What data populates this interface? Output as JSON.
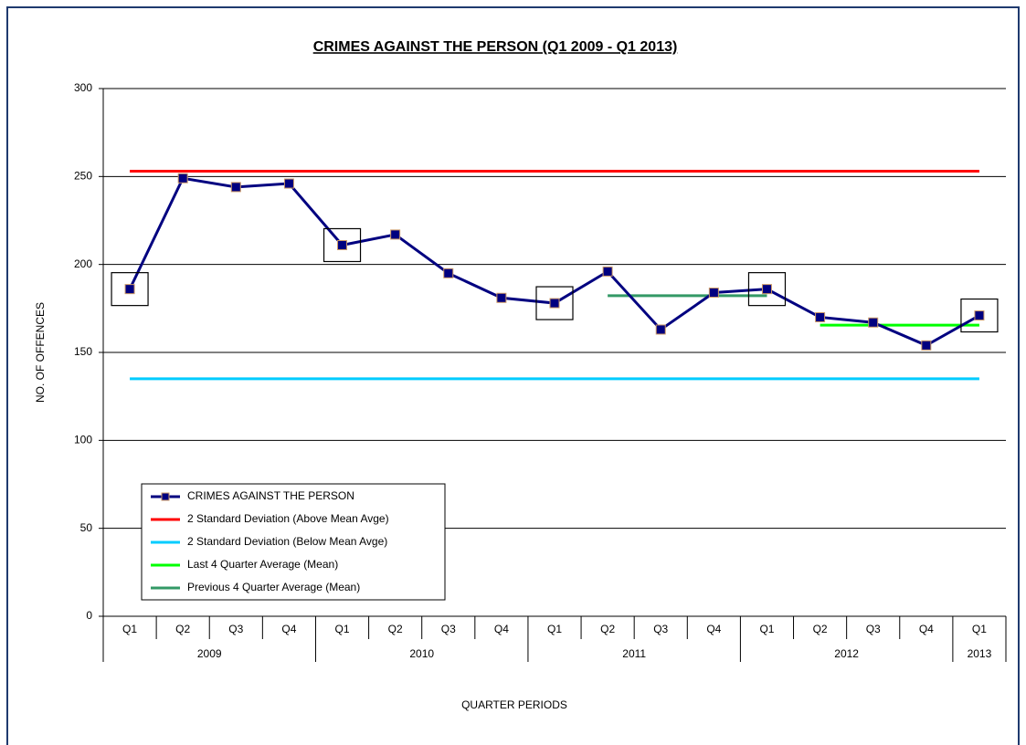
{
  "chart_data": {
    "type": "line",
    "title": "CRIMES AGAINST THE PERSON (Q1 2009 - Q1 2013)",
    "y_label": "NO. OF OFFENCES",
    "x_label": "QUARTER PERIODS",
    "categories": [
      "Q1",
      "Q2",
      "Q3",
      "Q4",
      "Q1",
      "Q2",
      "Q3",
      "Q4",
      "Q1",
      "Q2",
      "Q3",
      "Q4",
      "Q1",
      "Q2",
      "Q3",
      "Q4",
      "Q1"
    ],
    "category_groups": [
      "2009",
      "2009",
      "2009",
      "2009",
      "2010",
      "2010",
      "2010",
      "2010",
      "2011",
      "2011",
      "2011",
      "2011",
      "2012",
      "2012",
      "2012",
      "2012",
      "2013"
    ],
    "series": [
      {
        "name": "CRIMES AGAINST THE PERSON",
        "color": "#000080",
        "marker": true,
        "values": [
          186,
          249,
          244,
          246,
          211,
          217,
          195,
          181,
          178,
          196,
          163,
          184,
          186,
          170,
          167,
          154,
          171
        ]
      },
      {
        "name": "2 Standard Deviation (Above Mean Avge)",
        "color": "#ff0000",
        "values": [
          253,
          253,
          253,
          253,
          253,
          253,
          253,
          253,
          253,
          253,
          253,
          253,
          253,
          253,
          253,
          253,
          253
        ]
      },
      {
        "name": "2 Standard Deviation (Below Mean Avge)",
        "color": "#00ccff",
        "values": [
          135,
          135,
          135,
          135,
          135,
          135,
          135,
          135,
          135,
          135,
          135,
          135,
          135,
          135,
          135,
          135,
          135
        ]
      },
      {
        "name": "Last 4 Quarter Average (Mean)",
        "color": "#00ff00",
        "values": [
          null,
          null,
          null,
          null,
          null,
          null,
          null,
          null,
          null,
          null,
          null,
          null,
          null,
          165.5,
          165.5,
          165.5,
          165.5
        ]
      },
      {
        "name": "Previous 4 Quarter Average (Mean)",
        "color": "#339966",
        "values": [
          null,
          null,
          null,
          null,
          null,
          null,
          null,
          null,
          null,
          182.25,
          182.25,
          182.25,
          182.25,
          null,
          null,
          null,
          null
        ]
      }
    ],
    "ylim": [
      0,
      300
    ],
    "yticks": [
      0,
      50,
      100,
      150,
      200,
      250,
      300
    ],
    "grid": true
  }
}
